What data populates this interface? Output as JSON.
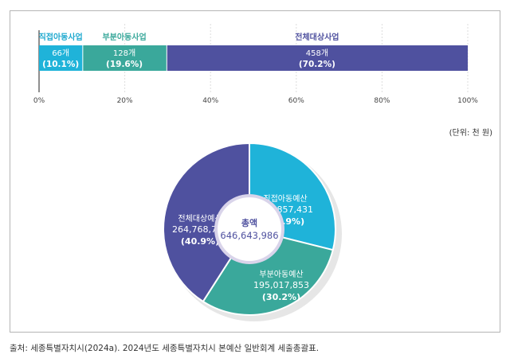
{
  "chart_data": [
    {
      "type": "bar",
      "orientation": "horizontal-stacked-100",
      "categories": [
        "직접아동사업",
        "부분아동사업",
        "전체대상사업"
      ],
      "counts": [
        "66개",
        "128개",
        "458개"
      ],
      "values": [
        10.1,
        19.6,
        70.2
      ],
      "value_labels": [
        "(10.1%)",
        "(19.6%)",
        "(70.2%)"
      ],
      "colors": [
        "#1fb3d9",
        "#3aa89b",
        "#4f519f"
      ],
      "label_colors": [
        "#1fa9cf",
        "#3aa89b",
        "#4f519f"
      ],
      "xlim": [
        0,
        100
      ],
      "xticks": [
        "0%",
        "20%",
        "40%",
        "60%",
        "80%",
        "100%"
      ],
      "grid": true
    },
    {
      "type": "pie",
      "donut": true,
      "unit_label": "(단위: 천 원)",
      "center_title": "총액",
      "center_value": "646,643,986",
      "slices": [
        {
          "name": "직접아동예산",
          "value": 186857431,
          "value_label": "186,857,431",
          "percent": "(28.9%)",
          "color": "#1fb3d9"
        },
        {
          "name": "부분아동예산",
          "value": 195017853,
          "value_label": "195,017,853",
          "percent": "(30.2%)",
          "color": "#3aa89b"
        },
        {
          "name": "전체대상예산",
          "value": 264768702,
          "value_label": "264,768,702",
          "percent": "(40.9%)",
          "color": "#4f519f"
        }
      ]
    }
  ],
  "source": "출처: 세종특별자치시(2024a). 2024년도 세종특별자치시 본예산 일반회계 세출총괄표."
}
